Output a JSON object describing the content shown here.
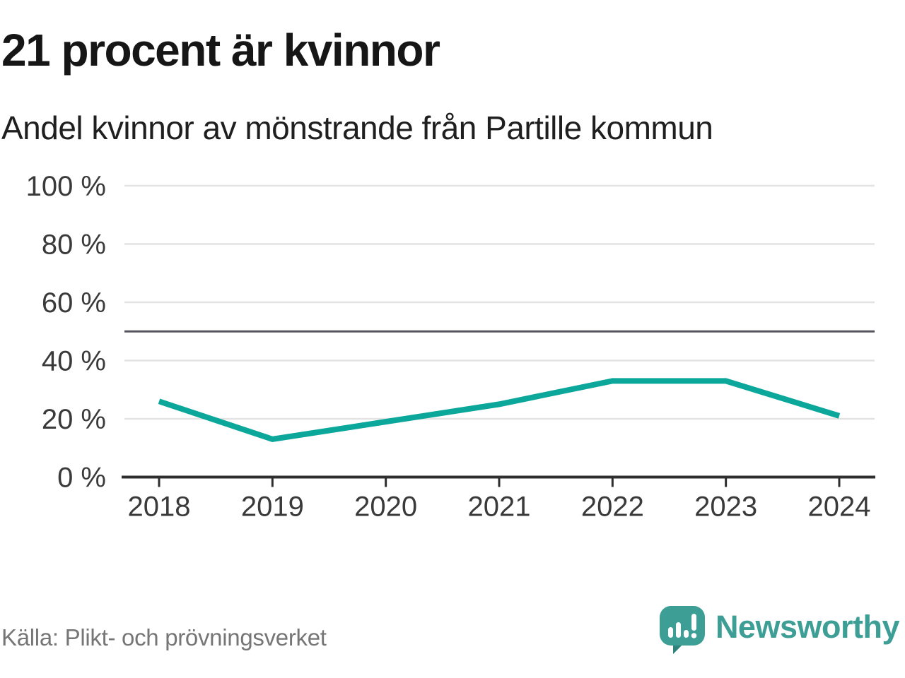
{
  "header": {
    "title": "21 procent är kvinnor",
    "subtitle": "Andel kvinnor av mönstrande från Partille kommun"
  },
  "chart_data": {
    "type": "line",
    "title": "21 procent är kvinnor",
    "subtitle": "Andel kvinnor av mönstrande från Partille kommun",
    "x": [
      "2018",
      "2019",
      "2020",
      "2021",
      "2022",
      "2023",
      "2024"
    ],
    "series": [
      {
        "name": "Andel kvinnor av mönstrande",
        "values": [
          26,
          13,
          19,
          25,
          33,
          33,
          21
        ]
      }
    ],
    "unit": "%",
    "ylim": [
      0,
      100
    ],
    "yticks": [
      0,
      20,
      40,
      60,
      80,
      100
    ],
    "ytick_suffix": " %",
    "reference_line": 50,
    "grid": "horizontal",
    "legend": "none",
    "line_color": "#0ba79b"
  },
  "footer": {
    "source": "Källa: Plikt- och prövningsverket",
    "brand": "Newsworthy"
  },
  "colors": {
    "accent": "#0ba79b",
    "brand_teal": "#3d9e96",
    "brand_teal_dark": "#2e837d",
    "gridline": "#e3e3e3",
    "reference_line": "#55555d",
    "axis": "#2e2e2e",
    "tick_label": "#3a3a3a",
    "title_text": "#161616",
    "muted_text": "#767676"
  }
}
